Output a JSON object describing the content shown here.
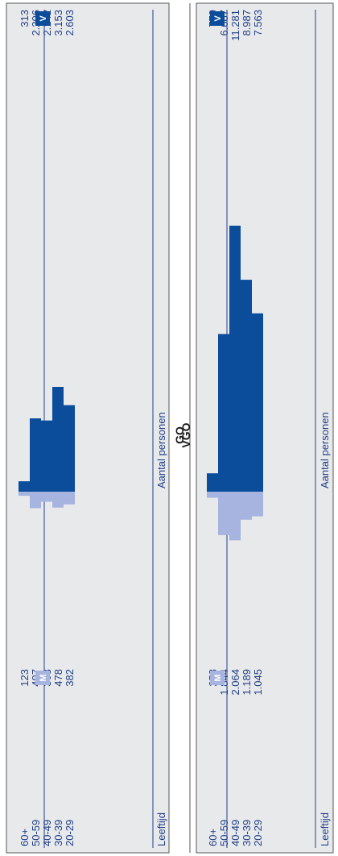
{
  "colors": {
    "male": "#a6b4df",
    "female": "#0b4c9b",
    "panel": "#e8e9ea",
    "text": "#1f3f8a",
    "border": "#555555"
  },
  "chart_data": [
    {
      "type": "bar",
      "title": "GO",
      "orientation": "diverging-bars",
      "categories": [
        "60+",
        "50-59",
        "40-49",
        "30-39",
        "20-29"
      ],
      "category_header": "Leeftijd",
      "axis_label": "Aantal personen",
      "series": [
        {
          "name": "M",
          "values": [
            123,
            497,
            303,
            478,
            382
          ],
          "labels": [
            "123",
            "497",
            "303",
            "478",
            "382"
          ]
        },
        {
          "name": "V",
          "values": [
            313,
            2206,
            2142,
            3153,
            2603
          ],
          "labels": [
            "313",
            "2.206",
            "2.142",
            "3.153",
            "2.603"
          ]
        }
      ]
    },
    {
      "type": "bar",
      "title": "VGO",
      "orientation": "diverging-bars",
      "categories": [
        "60+",
        "50-59",
        "40-49",
        "30-39",
        "20-29"
      ],
      "category_header": "Leeftijd",
      "axis_label": "Aantal personen",
      "series": [
        {
          "name": "M",
          "values": [
            258,
            1844,
            2064,
            1189,
            1045
          ],
          "labels": [
            "258",
            "1.844",
            "2.064",
            "1.189",
            "1.045"
          ]
        },
        {
          "name": "V",
          "values": [
            779,
            6687,
            11281,
            8987,
            7563
          ],
          "labels": [
            "779",
            "6.687",
            "11.281",
            "8.987",
            "7.563"
          ]
        }
      ]
    }
  ]
}
